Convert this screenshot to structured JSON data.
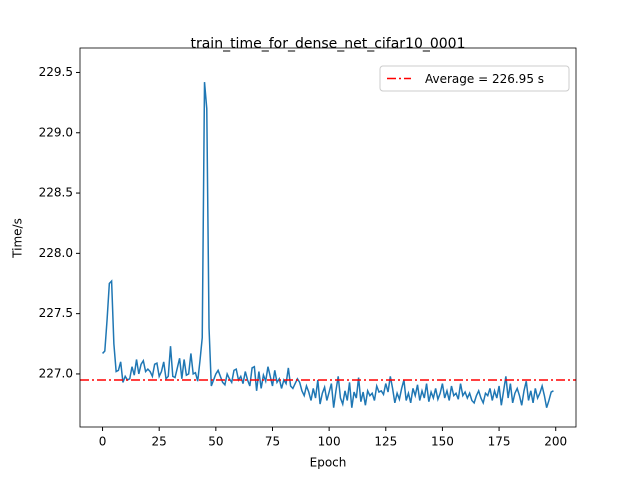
{
  "chart_data": {
    "type": "line",
    "title": "train_time_for_dense_net_cifar10_0001",
    "xlabel": "Epoch",
    "ylabel": "Time/s",
    "color": "#1f77b4",
    "x": [
      0,
      1,
      2,
      3,
      4,
      5,
      6,
      7,
      8,
      9,
      10,
      11,
      12,
      13,
      14,
      15,
      16,
      17,
      18,
      19,
      20,
      21,
      22,
      23,
      24,
      25,
      26,
      27,
      28,
      29,
      30,
      31,
      32,
      33,
      34,
      35,
      36,
      37,
      38,
      39,
      40,
      41,
      42,
      43,
      44,
      45,
      46,
      47,
      48,
      49,
      50,
      51,
      52,
      53,
      54,
      55,
      56,
      57,
      58,
      59,
      60,
      61,
      62,
      63,
      64,
      65,
      66,
      67,
      68,
      69,
      70,
      71,
      72,
      73,
      74,
      75,
      76,
      77,
      78,
      79,
      80,
      81,
      82,
      83,
      84,
      85,
      86,
      87,
      88,
      89,
      90,
      91,
      92,
      93,
      94,
      95,
      96,
      97,
      98,
      99,
      100,
      101,
      102,
      103,
      104,
      105,
      106,
      107,
      108,
      109,
      110,
      111,
      112,
      113,
      114,
      115,
      116,
      117,
      118,
      119,
      120,
      121,
      122,
      123,
      124,
      125,
      126,
      127,
      128,
      129,
      130,
      131,
      132,
      133,
      134,
      135,
      136,
      137,
      138,
      139,
      140,
      141,
      142,
      143,
      144,
      145,
      146,
      147,
      148,
      149,
      150,
      151,
      152,
      153,
      154,
      155,
      156,
      157,
      158,
      159,
      160,
      161,
      162,
      163,
      164,
      165,
      166,
      167,
      168,
      169,
      170,
      171,
      172,
      173,
      174,
      175,
      176,
      177,
      178,
      179,
      180,
      181,
      182,
      183,
      184,
      185,
      186,
      187,
      188,
      189,
      190,
      191,
      192,
      193,
      194,
      195,
      196,
      197,
      198,
      199
    ],
    "values": [
      227.17,
      227.19,
      227.45,
      227.75,
      227.77,
      227.25,
      227.02,
      227.03,
      227.1,
      226.93,
      226.98,
      226.95,
      226.96,
      227.06,
      226.99,
      227.12,
      227.0,
      227.08,
      227.11,
      227.02,
      227.04,
      227.02,
      226.98,
      227.08,
      227.09,
      226.98,
      227.02,
      227.1,
      226.96,
      226.98,
      227.23,
      226.98,
      226.97,
      227.05,
      227.13,
      226.96,
      227.12,
      226.99,
      227.0,
      227.17,
      227.0,
      227.01,
      226.94,
      227.11,
      227.3,
      229.42,
      229.2,
      227.38,
      226.9,
      226.95,
      227.0,
      227.03,
      226.98,
      226.93,
      226.91,
      227.0,
      226.96,
      226.93,
      227.03,
      227.04,
      226.95,
      226.98,
      226.92,
      227.02,
      226.95,
      226.9,
      227.05,
      227.06,
      226.86,
      227.02,
      226.88,
      226.99,
      226.94,
      227.06,
      226.98,
      226.9,
      227.03,
      226.93,
      226.96,
      226.88,
      226.95,
      226.92,
      227.05,
      226.9,
      226.88,
      226.92,
      226.96,
      226.93,
      226.86,
      226.82,
      226.9,
      226.85,
      226.78,
      226.88,
      226.8,
      226.95,
      226.75,
      226.84,
      226.89,
      226.78,
      226.85,
      226.92,
      226.72,
      226.86,
      226.98,
      226.8,
      226.75,
      226.86,
      226.78,
      226.93,
      226.72,
      226.85,
      226.8,
      226.97,
      226.77,
      226.85,
      226.74,
      226.86,
      226.82,
      226.84,
      226.78,
      226.9,
      226.85,
      226.86,
      226.83,
      226.92,
      226.85,
      226.98,
      226.88,
      226.76,
      226.84,
      226.79,
      226.88,
      226.95,
      226.78,
      226.84,
      226.76,
      226.88,
      226.82,
      226.91,
      226.78,
      226.86,
      226.8,
      226.92,
      226.77,
      226.85,
      226.8,
      226.88,
      226.79,
      226.84,
      226.92,
      226.8,
      226.86,
      226.78,
      226.9,
      226.82,
      226.84,
      226.79,
      226.92,
      226.82,
      226.85,
      226.8,
      226.84,
      226.78,
      226.76,
      226.82,
      226.86,
      226.8,
      226.76,
      226.84,
      226.82,
      226.88,
      226.78,
      226.86,
      226.8,
      226.9,
      226.74,
      226.86,
      226.98,
      226.8,
      226.92,
      226.76,
      226.84,
      226.88,
      226.82,
      226.74,
      226.86,
      226.94,
      226.78,
      226.86,
      226.76,
      226.88,
      226.8,
      226.84,
      226.9,
      226.82,
      226.72,
      226.78,
      226.85,
      226.86
    ],
    "average": {
      "value": 226.95,
      "label": "Average = 226.95 s",
      "color": "#ff0000"
    },
    "legend": "upper right",
    "xlim": [
      -9.95,
      208.95
    ],
    "ylim": [
      226.56,
      229.62
    ],
    "xticks": [
      0,
      25,
      50,
      75,
      100,
      125,
      150,
      175,
      200
    ],
    "yticks": [
      {
        "value": 227,
        "label": "227.0"
      },
      227.5,
      {
        "value": 228,
        "label": "228.0"
      },
      228.5,
      {
        "value": 229,
        "label": "229.0"
      },
      229.5
    ]
  }
}
